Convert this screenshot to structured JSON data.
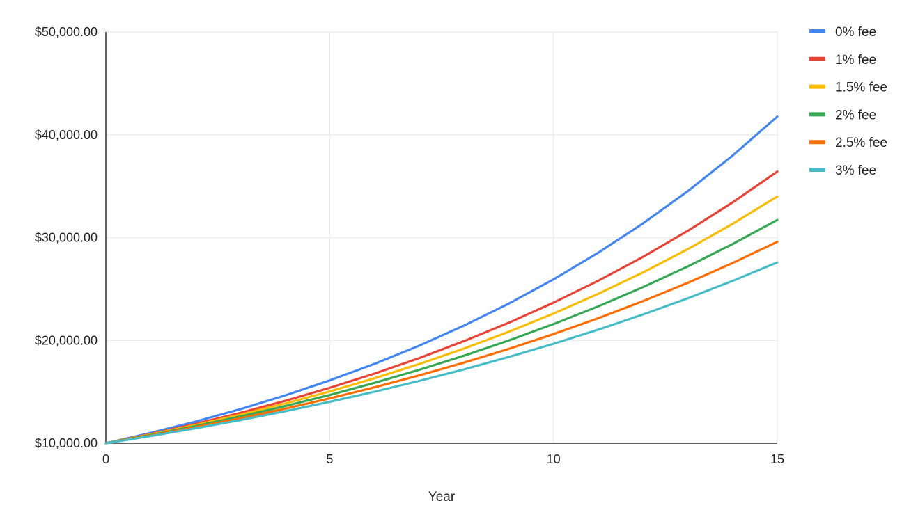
{
  "chart_data": {
    "type": "line",
    "title": "",
    "xlabel": "Year",
    "ylabel": "",
    "xlim": [
      0,
      15
    ],
    "ylim": [
      10000,
      50000
    ],
    "x_ticks": [
      {
        "value": 0,
        "label": "0"
      },
      {
        "value": 5,
        "label": "5"
      },
      {
        "value": 10,
        "label": "10"
      },
      {
        "value": 15,
        "label": "15"
      }
    ],
    "y_ticks": [
      {
        "value": 10000,
        "label": "$10,000.00"
      },
      {
        "value": 20000,
        "label": "$20,000.00"
      },
      {
        "value": 30000,
        "label": "$30,000.00"
      },
      {
        "value": 40000,
        "label": "$40,000.00"
      },
      {
        "value": 50000,
        "label": "$50,000.00"
      }
    ],
    "grid": true,
    "legend_position": "right",
    "x": [
      0,
      1,
      2,
      3,
      4,
      5,
      6,
      7,
      8,
      9,
      10,
      11,
      12,
      13,
      14,
      15
    ],
    "series": [
      {
        "name": "0% fee",
        "color": "#4285F4",
        "values": [
          10000,
          11000,
          12100,
          13310,
          14641,
          16105,
          17716,
          19487,
          21436,
          23579,
          25937,
          28531,
          31384,
          34523,
          37975,
          41772
        ]
      },
      {
        "name": "1% fee",
        "color": "#EA4335",
        "values": [
          10000,
          10900,
          11881,
          12950,
          14116,
          15386,
          16771,
          18280,
          19926,
          21719,
          23674,
          25804,
          28127,
          30658,
          33417,
          36425
        ]
      },
      {
        "name": "1.5% fee",
        "color": "#FBBC04",
        "values": [
          10000,
          10850,
          11772,
          12773,
          13859,
          15037,
          16315,
          17701,
          19206,
          20839,
          22610,
          24532,
          26617,
          28879,
          31334,
          33997
        ]
      },
      {
        "name": "2% fee",
        "color": "#34A853",
        "values": [
          10000,
          10800,
          11664,
          12597,
          13605,
          14693,
          15869,
          17138,
          18509,
          19990,
          21589,
          23316,
          25182,
          27196,
          29372,
          31722
        ]
      },
      {
        "name": "2.5% fee",
        "color": "#FF6D01",
        "values": [
          10000,
          10750,
          11556,
          12423,
          13355,
          14356,
          15433,
          16590,
          17835,
          19172,
          20610,
          22156,
          23818,
          25604,
          27524,
          29589
        ]
      },
      {
        "name": "3% fee",
        "color": "#46BDC6",
        "values": [
          10000,
          10700,
          11449,
          12250,
          13108,
          14026,
          15007,
          16058,
          17182,
          18385,
          19672,
          21049,
          22522,
          24098,
          25785,
          27590
        ]
      }
    ]
  }
}
